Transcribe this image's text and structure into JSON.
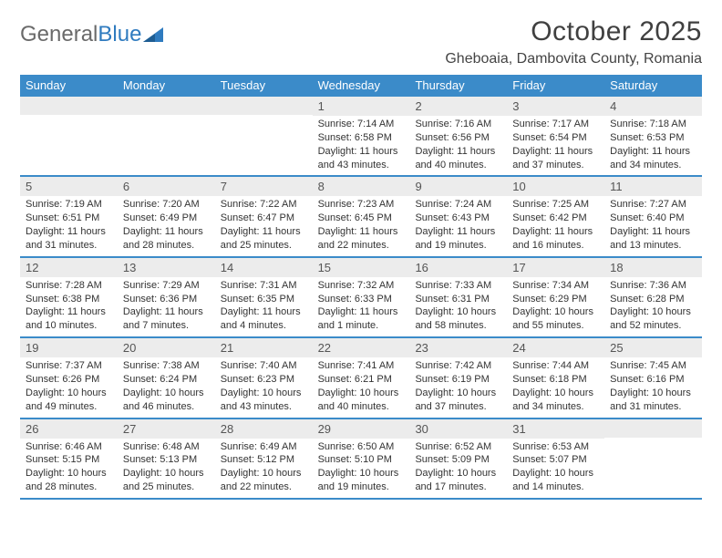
{
  "logo": {
    "text1": "General",
    "text2": "Blue"
  },
  "title": "October 2025",
  "location": "Gheboaia, Dambovita County, Romania",
  "colors": {
    "header_bg": "#3b8bc9",
    "header_text": "#ffffff",
    "daynum_bg": "#ececec",
    "daynum_text": "#555555",
    "body_text": "#333333",
    "rule": "#3b8bc9",
    "logo_gray": "#6a6a6a",
    "logo_blue": "#2f7bbf",
    "page_bg": "#ffffff"
  },
  "typography": {
    "title_fontsize": 30,
    "location_fontsize": 16,
    "dow_fontsize": 13,
    "daynum_fontsize": 13,
    "body_fontsize": 11,
    "font_family": "Arial"
  },
  "layout": {
    "columns": 7,
    "rows": 5,
    "first_weekday": "Sunday"
  },
  "dow": [
    "Sunday",
    "Monday",
    "Tuesday",
    "Wednesday",
    "Thursday",
    "Friday",
    "Saturday"
  ],
  "weeks": [
    [
      {
        "n": "",
        "sr": "",
        "ss": "",
        "dl": ""
      },
      {
        "n": "",
        "sr": "",
        "ss": "",
        "dl": ""
      },
      {
        "n": "",
        "sr": "",
        "ss": "",
        "dl": ""
      },
      {
        "n": "1",
        "sr": "Sunrise: 7:14 AM",
        "ss": "Sunset: 6:58 PM",
        "dl": "Daylight: 11 hours and 43 minutes."
      },
      {
        "n": "2",
        "sr": "Sunrise: 7:16 AM",
        "ss": "Sunset: 6:56 PM",
        "dl": "Daylight: 11 hours and 40 minutes."
      },
      {
        "n": "3",
        "sr": "Sunrise: 7:17 AM",
        "ss": "Sunset: 6:54 PM",
        "dl": "Daylight: 11 hours and 37 minutes."
      },
      {
        "n": "4",
        "sr": "Sunrise: 7:18 AM",
        "ss": "Sunset: 6:53 PM",
        "dl": "Daylight: 11 hours and 34 minutes."
      }
    ],
    [
      {
        "n": "5",
        "sr": "Sunrise: 7:19 AM",
        "ss": "Sunset: 6:51 PM",
        "dl": "Daylight: 11 hours and 31 minutes."
      },
      {
        "n": "6",
        "sr": "Sunrise: 7:20 AM",
        "ss": "Sunset: 6:49 PM",
        "dl": "Daylight: 11 hours and 28 minutes."
      },
      {
        "n": "7",
        "sr": "Sunrise: 7:22 AM",
        "ss": "Sunset: 6:47 PM",
        "dl": "Daylight: 11 hours and 25 minutes."
      },
      {
        "n": "8",
        "sr": "Sunrise: 7:23 AM",
        "ss": "Sunset: 6:45 PM",
        "dl": "Daylight: 11 hours and 22 minutes."
      },
      {
        "n": "9",
        "sr": "Sunrise: 7:24 AM",
        "ss": "Sunset: 6:43 PM",
        "dl": "Daylight: 11 hours and 19 minutes."
      },
      {
        "n": "10",
        "sr": "Sunrise: 7:25 AM",
        "ss": "Sunset: 6:42 PM",
        "dl": "Daylight: 11 hours and 16 minutes."
      },
      {
        "n": "11",
        "sr": "Sunrise: 7:27 AM",
        "ss": "Sunset: 6:40 PM",
        "dl": "Daylight: 11 hours and 13 minutes."
      }
    ],
    [
      {
        "n": "12",
        "sr": "Sunrise: 7:28 AM",
        "ss": "Sunset: 6:38 PM",
        "dl": "Daylight: 11 hours and 10 minutes."
      },
      {
        "n": "13",
        "sr": "Sunrise: 7:29 AM",
        "ss": "Sunset: 6:36 PM",
        "dl": "Daylight: 11 hours and 7 minutes."
      },
      {
        "n": "14",
        "sr": "Sunrise: 7:31 AM",
        "ss": "Sunset: 6:35 PM",
        "dl": "Daylight: 11 hours and 4 minutes."
      },
      {
        "n": "15",
        "sr": "Sunrise: 7:32 AM",
        "ss": "Sunset: 6:33 PM",
        "dl": "Daylight: 11 hours and 1 minute."
      },
      {
        "n": "16",
        "sr": "Sunrise: 7:33 AM",
        "ss": "Sunset: 6:31 PM",
        "dl": "Daylight: 10 hours and 58 minutes."
      },
      {
        "n": "17",
        "sr": "Sunrise: 7:34 AM",
        "ss": "Sunset: 6:29 PM",
        "dl": "Daylight: 10 hours and 55 minutes."
      },
      {
        "n": "18",
        "sr": "Sunrise: 7:36 AM",
        "ss": "Sunset: 6:28 PM",
        "dl": "Daylight: 10 hours and 52 minutes."
      }
    ],
    [
      {
        "n": "19",
        "sr": "Sunrise: 7:37 AM",
        "ss": "Sunset: 6:26 PM",
        "dl": "Daylight: 10 hours and 49 minutes."
      },
      {
        "n": "20",
        "sr": "Sunrise: 7:38 AM",
        "ss": "Sunset: 6:24 PM",
        "dl": "Daylight: 10 hours and 46 minutes."
      },
      {
        "n": "21",
        "sr": "Sunrise: 7:40 AM",
        "ss": "Sunset: 6:23 PM",
        "dl": "Daylight: 10 hours and 43 minutes."
      },
      {
        "n": "22",
        "sr": "Sunrise: 7:41 AM",
        "ss": "Sunset: 6:21 PM",
        "dl": "Daylight: 10 hours and 40 minutes."
      },
      {
        "n": "23",
        "sr": "Sunrise: 7:42 AM",
        "ss": "Sunset: 6:19 PM",
        "dl": "Daylight: 10 hours and 37 minutes."
      },
      {
        "n": "24",
        "sr": "Sunrise: 7:44 AM",
        "ss": "Sunset: 6:18 PM",
        "dl": "Daylight: 10 hours and 34 minutes."
      },
      {
        "n": "25",
        "sr": "Sunrise: 7:45 AM",
        "ss": "Sunset: 6:16 PM",
        "dl": "Daylight: 10 hours and 31 minutes."
      }
    ],
    [
      {
        "n": "26",
        "sr": "Sunrise: 6:46 AM",
        "ss": "Sunset: 5:15 PM",
        "dl": "Daylight: 10 hours and 28 minutes."
      },
      {
        "n": "27",
        "sr": "Sunrise: 6:48 AM",
        "ss": "Sunset: 5:13 PM",
        "dl": "Daylight: 10 hours and 25 minutes."
      },
      {
        "n": "28",
        "sr": "Sunrise: 6:49 AM",
        "ss": "Sunset: 5:12 PM",
        "dl": "Daylight: 10 hours and 22 minutes."
      },
      {
        "n": "29",
        "sr": "Sunrise: 6:50 AM",
        "ss": "Sunset: 5:10 PM",
        "dl": "Daylight: 10 hours and 19 minutes."
      },
      {
        "n": "30",
        "sr": "Sunrise: 6:52 AM",
        "ss": "Sunset: 5:09 PM",
        "dl": "Daylight: 10 hours and 17 minutes."
      },
      {
        "n": "31",
        "sr": "Sunrise: 6:53 AM",
        "ss": "Sunset: 5:07 PM",
        "dl": "Daylight: 10 hours and 14 minutes."
      },
      {
        "n": "",
        "sr": "",
        "ss": "",
        "dl": ""
      }
    ]
  ]
}
